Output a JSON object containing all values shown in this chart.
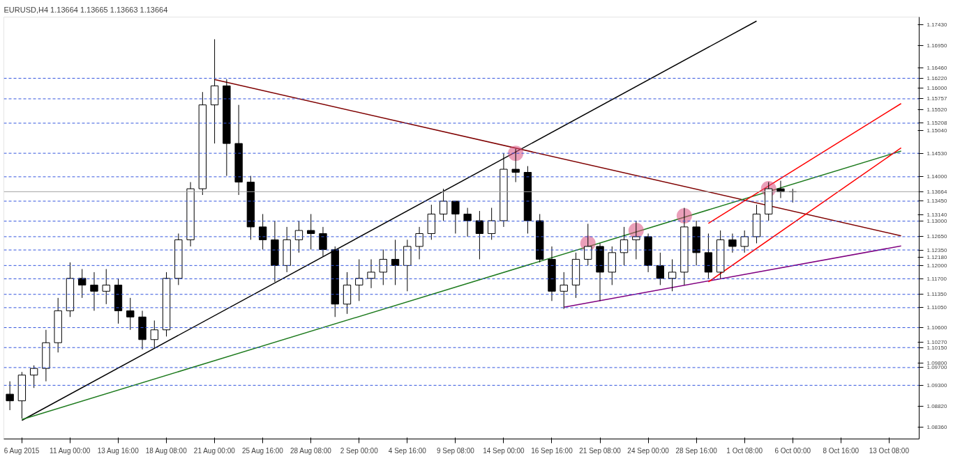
{
  "chart_data": {
    "type": "candlestick",
    "title": "EURUSD,H4  1.13664 1.13665 1.13663 1.13664",
    "categories": [
      null,
      "6 Aug 2015",
      null,
      null,
      null,
      "11 Aug 00:00",
      null,
      null,
      null,
      "13 Aug 16:00",
      null,
      null,
      null,
      "18 Aug 08:00",
      null,
      null,
      null,
      "21 Aug 00:00",
      null,
      null,
      null,
      "25 Aug 16:00",
      null,
      null,
      null,
      "28 Aug 08:00",
      null,
      null,
      null,
      "2 Sep 00:00",
      null,
      null,
      null,
      "4 Sep 16:00",
      null,
      null,
      null,
      "9 Sep 08:00",
      null,
      null,
      null,
      "14 Sep 00:00",
      null,
      null,
      null,
      "16 Sep 16:00",
      null,
      null,
      null,
      "21 Sep 08:00",
      null,
      null,
      null,
      "24 Sep 00:00",
      null,
      null,
      null,
      "28 Sep 16:00",
      null,
      null,
      null,
      "1 Oct 08:00",
      null,
      null,
      null,
      "6 Oct 00:00",
      null,
      null,
      null,
      "8 Oct 16:00",
      null,
      null,
      null,
      "13 Oct 08:00",
      null,
      null
    ],
    "ylim": [
      1.0809,
      1.176
    ],
    "yticks": [
      {
        "value": 1.1743,
        "label": "1.17430"
      },
      {
        "value": 1.1695,
        "label": "1.16950"
      },
      {
        "value": 1.1646,
        "label": "1.16460"
      },
      {
        "value": 1.16,
        "label": "1.16000"
      },
      {
        "value": 1.1552,
        "label": "1.15520"
      },
      {
        "value": 1.1504,
        "label": "1.15040"
      },
      {
        "value": 1.1314,
        "label": "1.13140"
      },
      {
        "value": 1.1218,
        "label": "1.12180"
      },
      {
        "value": 1.1027,
        "label": "1.10270"
      },
      {
        "value": 1.098,
        "label": "1.09800"
      },
      {
        "value": 1.0882,
        "label": "1.08820"
      },
      {
        "value": 1.0836,
        "label": "1.08360"
      }
    ],
    "ref_lines": [
      {
        "axis": "y",
        "value": 1.1622,
        "label": "1.16220",
        "color": "#3355dd",
        "line_style": "dashed"
      },
      {
        "axis": "y",
        "value": 1.15757,
        "label": "1.15757",
        "color": "#3355dd",
        "line_style": "dashed"
      },
      {
        "axis": "y",
        "value": 1.15208,
        "label": "1.15208",
        "color": "#3355dd",
        "line_style": "dashed"
      },
      {
        "axis": "y",
        "value": 1.1453,
        "label": "1.14530",
        "color": "#3355dd",
        "line_style": "dashed"
      },
      {
        "axis": "y",
        "value": 1.14,
        "label": "1.14000",
        "color": "#3355dd",
        "line_style": "dashed"
      },
      {
        "axis": "y",
        "value": 1.13664,
        "label": "1.13664",
        "color": "#a0a0a0",
        "line_style": "solid"
      },
      {
        "axis": "y",
        "value": 1.1345,
        "label": "1.13450",
        "color": "#3355dd",
        "line_style": "dashed"
      },
      {
        "axis": "y",
        "value": 1.13,
        "label": "1.13000",
        "color": "#3355dd",
        "line_style": "dashed"
      },
      {
        "axis": "y",
        "value": 1.1265,
        "label": "1.12650",
        "color": "#3355dd",
        "line_style": "dashed"
      },
      {
        "axis": "y",
        "value": 1.1235,
        "label": "1.12350",
        "color": "#3355dd",
        "line_style": "dashed"
      },
      {
        "axis": "y",
        "value": 1.12,
        "label": "1.12000",
        "color": "#3355dd",
        "line_style": "dashed"
      },
      {
        "axis": "y",
        "value": 1.117,
        "label": "1.11700",
        "color": "#3355dd",
        "line_style": "dashed"
      },
      {
        "axis": "y",
        "value": 1.1135,
        "label": "1.11350",
        "color": "#3355dd",
        "line_style": "dashed"
      },
      {
        "axis": "y",
        "value": 1.1105,
        "label": "1.11050",
        "color": "#3355dd",
        "line_style": "dashed"
      },
      {
        "axis": "y",
        "value": 1.106,
        "label": "1.10600",
        "color": "#3355dd",
        "line_style": "dashed"
      },
      {
        "axis": "y",
        "value": 1.1015,
        "label": "1.10150",
        "color": "#3355dd",
        "line_style": "dashed"
      },
      {
        "axis": "y",
        "value": 1.097,
        "label": "1.09700",
        "color": "#3355dd",
        "line_style": "dashed"
      },
      {
        "axis": "y",
        "value": 1.093,
        "label": "1.09300",
        "color": "#3355dd",
        "line_style": "dashed"
      }
    ],
    "ohlc": [
      [
        1.091,
        1.0939,
        1.0874,
        1.0895
      ],
      [
        1.0895,
        1.096,
        1.0855,
        1.0953
      ],
      [
        1.0953,
        1.0975,
        1.0924,
        1.0968
      ],
      [
        1.0968,
        1.1055,
        1.0939,
        1.1026
      ],
      [
        1.1026,
        1.1127,
        1.1004,
        1.1098
      ],
      [
        1.1098,
        1.1207,
        1.1084,
        1.1171
      ],
      [
        1.1171,
        1.1192,
        1.1127,
        1.1156
      ],
      [
        1.1156,
        1.1185,
        1.1098,
        1.1142
      ],
      [
        1.1142,
        1.1192,
        1.1113,
        1.1156
      ],
      [
        1.1156,
        1.1171,
        1.1069,
        1.1098
      ],
      [
        1.1098,
        1.1127,
        1.1055,
        1.1084
      ],
      [
        1.1084,
        1.1098,
        1.1011,
        1.1033
      ],
      [
        1.1033,
        1.1076,
        1.1014,
        1.1055
      ],
      [
        1.1055,
        1.1185,
        1.104,
        1.1171
      ],
      [
        1.1171,
        1.1272,
        1.1156,
        1.1258
      ],
      [
        1.1258,
        1.1388,
        1.1243,
        1.1373
      ],
      [
        1.1373,
        1.1591,
        1.1359,
        1.1562
      ],
      [
        1.1562,
        1.171,
        1.1475,
        1.1605
      ],
      [
        1.1605,
        1.162,
        1.1402,
        1.1475
      ],
      [
        1.1475,
        1.1562,
        1.1359,
        1.1388
      ],
      [
        1.1388,
        1.1402,
        1.1258,
        1.1287
      ],
      [
        1.1287,
        1.1316,
        1.1236,
        1.1258
      ],
      [
        1.1258,
        1.1301,
        1.1163,
        1.12
      ],
      [
        1.12,
        1.1287,
        1.1185,
        1.1258
      ],
      [
        1.1258,
        1.1301,
        1.1229,
        1.1279
      ],
      [
        1.1279,
        1.1316,
        1.1236,
        1.1272
      ],
      [
        1.1272,
        1.1287,
        1.1221,
        1.1236
      ],
      [
        1.1236,
        1.1243,
        1.1084,
        1.1113
      ],
      [
        1.1113,
        1.1185,
        1.1091,
        1.1156
      ],
      [
        1.1156,
        1.1214,
        1.112,
        1.1171
      ],
      [
        1.1171,
        1.1214,
        1.1149,
        1.1185
      ],
      [
        1.1185,
        1.1236,
        1.1156,
        1.1214
      ],
      [
        1.1214,
        1.1258,
        1.1156,
        1.12
      ],
      [
        1.12,
        1.1258,
        1.1142,
        1.1243
      ],
      [
        1.1243,
        1.1287,
        1.1214,
        1.1272
      ],
      [
        1.1272,
        1.1337,
        1.1258,
        1.1316
      ],
      [
        1.1316,
        1.1373,
        1.1301,
        1.1345
      ],
      [
        1.1345,
        1.1345,
        1.1272,
        1.1316
      ],
      [
        1.1316,
        1.133,
        1.1265,
        1.1301
      ],
      [
        1.1301,
        1.1323,
        1.1214,
        1.1272
      ],
      [
        1.1272,
        1.133,
        1.1258,
        1.1301
      ],
      [
        1.1301,
        1.1453,
        1.1287,
        1.1417
      ],
      [
        1.1417,
        1.1463,
        1.1388,
        1.141
      ],
      [
        1.141,
        1.1424,
        1.1272,
        1.1301
      ],
      [
        1.1301,
        1.1316,
        1.1207,
        1.1214
      ],
      [
        1.1214,
        1.1243,
        1.112,
        1.1142
      ],
      [
        1.1142,
        1.1185,
        1.1102,
        1.1156
      ],
      [
        1.1156,
        1.1229,
        1.1127,
        1.1214
      ],
      [
        1.1214,
        1.1294,
        1.12,
        1.1243
      ],
      [
        1.1243,
        1.125,
        1.112,
        1.1185
      ],
      [
        1.1185,
        1.1243,
        1.1156,
        1.1229
      ],
      [
        1.1229,
        1.1287,
        1.12,
        1.1258
      ],
      [
        1.1258,
        1.1301,
        1.1214,
        1.1265
      ],
      [
        1.1265,
        1.1272,
        1.1185,
        1.12
      ],
      [
        1.12,
        1.1229,
        1.1156,
        1.1171
      ],
      [
        1.1171,
        1.1214,
        1.1142,
        1.1185
      ],
      [
        1.1185,
        1.133,
        1.1156,
        1.1287
      ],
      [
        1.1287,
        1.1301,
        1.12,
        1.1229
      ],
      [
        1.1229,
        1.1272,
        1.1171,
        1.1185
      ],
      [
        1.1185,
        1.1279,
        1.1171,
        1.1258
      ],
      [
        1.1258,
        1.1272,
        1.1229,
        1.1243
      ],
      [
        1.1243,
        1.1279,
        1.1229,
        1.1265
      ],
      [
        1.1265,
        1.1337,
        1.125,
        1.1316
      ],
      [
        1.1316,
        1.1388,
        1.1301,
        1.1373
      ],
      [
        1.1373,
        1.1391,
        1.1352,
        1.1366
      ],
      [
        1.1366,
        1.1373,
        1.1342,
        1.13664
      ],
      null,
      null,
      null,
      null,
      null,
      null,
      null,
      null,
      null,
      null
    ],
    "series": [
      {
        "type": "line",
        "color": "#000000",
        "values": [
          null,
          1.0851,
          null,
          null,
          null,
          null,
          null,
          null,
          null,
          null,
          null,
          null,
          null,
          null,
          null,
          null,
          null,
          null,
          null,
          null,
          null,
          null,
          null,
          null,
          null,
          null,
          null,
          null,
          null,
          null,
          null,
          null,
          null,
          null,
          null,
          null,
          null,
          null,
          null,
          null,
          null,
          null,
          null,
          null,
          null,
          null,
          null,
          null,
          null,
          null,
          null,
          null,
          null,
          null,
          null,
          null,
          null,
          null,
          null,
          null,
          null,
          null,
          1.1751,
          null,
          null,
          null,
          null,
          null,
          null,
          null,
          null,
          null,
          null,
          null,
          null,
          null
        ]
      },
      {
        "type": "line",
        "color": "#7f0000",
        "values": [
          null,
          null,
          null,
          null,
          null,
          null,
          null,
          null,
          null,
          null,
          null,
          null,
          null,
          null,
          null,
          null,
          null,
          1.1619,
          null,
          null,
          null,
          null,
          null,
          null,
          null,
          null,
          null,
          null,
          null,
          null,
          null,
          null,
          null,
          null,
          null,
          null,
          null,
          null,
          null,
          null,
          null,
          null,
          null,
          null,
          null,
          null,
          null,
          null,
          null,
          null,
          null,
          null,
          null,
          null,
          null,
          null,
          null,
          null,
          null,
          null,
          null,
          null,
          null,
          null,
          null,
          null,
          null,
          null,
          null,
          null,
          null,
          null,
          null,
          null,
          1.1267,
          null
        ]
      },
      {
        "type": "line",
        "color": "#1e7b1e",
        "values": [
          null,
          1.0853,
          null,
          null,
          null,
          null,
          null,
          null,
          null,
          null,
          null,
          null,
          null,
          null,
          null,
          null,
          null,
          null,
          null,
          null,
          null,
          null,
          null,
          null,
          null,
          null,
          null,
          null,
          null,
          null,
          null,
          null,
          null,
          null,
          null,
          null,
          null,
          null,
          null,
          null,
          null,
          null,
          null,
          null,
          null,
          null,
          null,
          null,
          null,
          null,
          null,
          null,
          null,
          null,
          null,
          null,
          null,
          null,
          null,
          null,
          null,
          null,
          null,
          null,
          null,
          null,
          null,
          null,
          null,
          null,
          null,
          null,
          null,
          null,
          1.1458,
          null
        ]
      },
      {
        "type": "line",
        "color": "#800080",
        "values": [
          null,
          null,
          null,
          null,
          null,
          null,
          null,
          null,
          null,
          null,
          null,
          null,
          null,
          null,
          null,
          null,
          null,
          null,
          null,
          null,
          null,
          null,
          null,
          null,
          null,
          null,
          null,
          null,
          null,
          null,
          null,
          null,
          null,
          null,
          null,
          null,
          null,
          null,
          null,
          null,
          null,
          null,
          null,
          null,
          null,
          null,
          1.1106,
          null,
          null,
          null,
          null,
          null,
          null,
          null,
          null,
          null,
          null,
          null,
          null,
          null,
          null,
          null,
          null,
          null,
          null,
          null,
          null,
          null,
          null,
          null,
          null,
          null,
          null,
          null,
          1.1244,
          null
        ]
      },
      {
        "type": "line",
        "color": "#ff0000",
        "values": [
          null,
          null,
          null,
          null,
          null,
          null,
          null,
          null,
          null,
          null,
          null,
          null,
          null,
          null,
          null,
          null,
          null,
          null,
          null,
          null,
          null,
          null,
          null,
          null,
          null,
          null,
          null,
          null,
          null,
          null,
          null,
          null,
          null,
          null,
          null,
          null,
          null,
          null,
          null,
          null,
          null,
          null,
          null,
          null,
          null,
          null,
          null,
          null,
          null,
          null,
          null,
          null,
          null,
          null,
          null,
          null,
          null,
          null,
          1.1295,
          null,
          null,
          null,
          null,
          null,
          null,
          null,
          null,
          null,
          null,
          null,
          null,
          null,
          null,
          null,
          1.1565,
          null
        ]
      },
      {
        "type": "line",
        "color": "#ff0000",
        "values": [
          null,
          null,
          null,
          null,
          null,
          null,
          null,
          null,
          null,
          null,
          null,
          null,
          null,
          null,
          null,
          null,
          null,
          null,
          null,
          null,
          null,
          null,
          null,
          null,
          null,
          null,
          null,
          null,
          null,
          null,
          null,
          null,
          null,
          null,
          null,
          null,
          null,
          null,
          null,
          null,
          null,
          null,
          null,
          null,
          null,
          null,
          null,
          null,
          null,
          null,
          null,
          null,
          null,
          null,
          null,
          null,
          null,
          null,
          1.1163,
          null,
          null,
          null,
          null,
          null,
          null,
          null,
          null,
          null,
          null,
          null,
          null,
          null,
          null,
          null,
          1.1465,
          null
        ]
      },
      {
        "type": "scatter",
        "color": "#d9507f",
        "marker": "circle",
        "values": [
          null,
          null,
          null,
          null,
          null,
          null,
          null,
          null,
          null,
          null,
          null,
          null,
          null,
          null,
          null,
          null,
          null,
          null,
          null,
          null,
          null,
          null,
          null,
          null,
          null,
          null,
          null,
          null,
          null,
          null,
          null,
          null,
          null,
          null,
          null,
          null,
          null,
          null,
          null,
          null,
          null,
          null,
          1.1453,
          null,
          null,
          null,
          null,
          null,
          1.125,
          null,
          null,
          null,
          1.1279,
          null,
          null,
          null,
          1.1312,
          null,
          null,
          null,
          null,
          null,
          null,
          1.1373,
          null,
          null,
          null,
          null,
          null,
          null,
          null,
          null,
          null,
          null,
          null,
          null
        ]
      }
    ]
  }
}
